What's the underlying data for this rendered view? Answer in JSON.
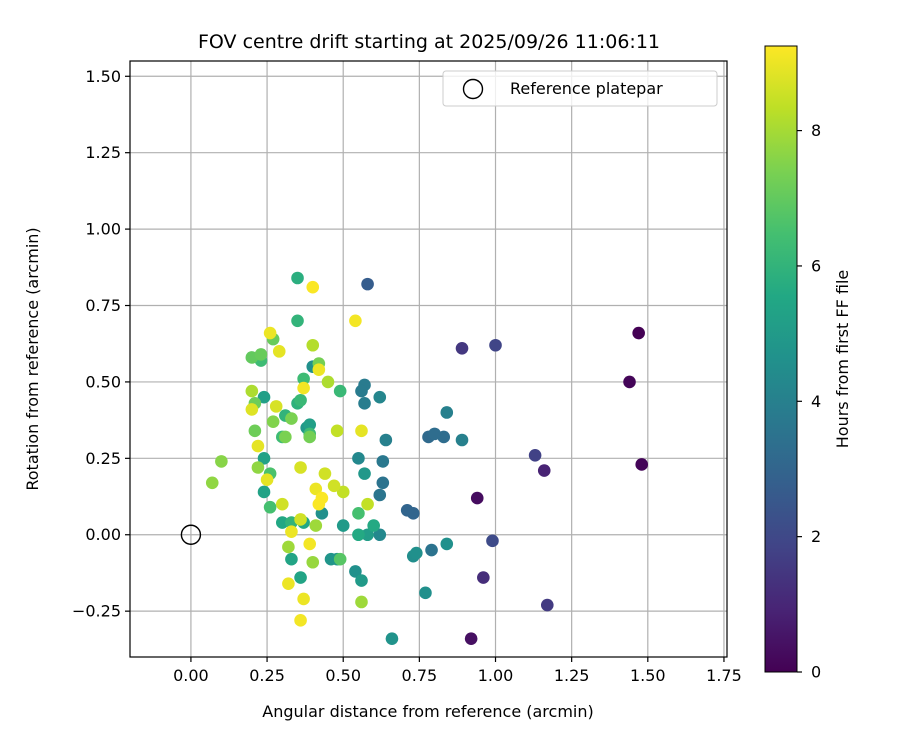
{
  "chart_data": {
    "type": "scatter",
    "title": "FOV centre drift starting at 2025/09/26 11:06:11",
    "xlabel": "Angular distance from reference (arcmin)",
    "ylabel": "Rotation from reference (arcmin)",
    "xlim": [
      -0.2,
      1.76
    ],
    "ylim": [
      -0.4,
      1.55
    ],
    "xticks": [
      0.0,
      0.25,
      0.5,
      0.75,
      1.0,
      1.25,
      1.5,
      1.75
    ],
    "xtick_labels": [
      "0.00",
      "0.25",
      "0.50",
      "0.75",
      "1.00",
      "1.25",
      "1.50",
      "1.75"
    ],
    "yticks": [
      -0.25,
      0.0,
      0.25,
      0.5,
      0.75,
      1.0,
      1.25,
      1.5
    ],
    "ytick_labels": [
      "−0.25",
      "0.00",
      "0.25",
      "0.50",
      "0.75",
      "1.00",
      "1.25",
      "1.50"
    ],
    "grid": true,
    "legend": {
      "position": "top-right",
      "label": "Reference platepar"
    },
    "reference": {
      "x": 0.0,
      "y": 0.0
    },
    "colorbar": {
      "label": "Hours from first FF file",
      "min": 0,
      "max": 9.25,
      "ticks": [
        0,
        2,
        4,
        6,
        8
      ],
      "tick_labels": [
        "0",
        "2",
        "4",
        "6",
        "8"
      ]
    },
    "points": [
      {
        "x": 1.47,
        "y": 0.66,
        "c": 0.0
      },
      {
        "x": 1.44,
        "y": 0.5,
        "c": 0.1
      },
      {
        "x": 1.48,
        "y": 0.23,
        "c": 0.1
      },
      {
        "x": 0.94,
        "y": 0.12,
        "c": 0.3
      },
      {
        "x": 0.92,
        "y": -0.34,
        "c": 0.4
      },
      {
        "x": 1.16,
        "y": 0.21,
        "c": 0.9
      },
      {
        "x": 0.96,
        "y": -0.14,
        "c": 1.2
      },
      {
        "x": 0.89,
        "y": 0.61,
        "c": 1.5
      },
      {
        "x": 1.17,
        "y": -0.23,
        "c": 1.6
      },
      {
        "x": 1.13,
        "y": 0.26,
        "c": 1.8
      },
      {
        "x": 1.0,
        "y": 0.62,
        "c": 1.9
      },
      {
        "x": 0.99,
        "y": -0.02,
        "c": 2.1
      },
      {
        "x": 0.58,
        "y": 0.82,
        "c": 2.7
      },
      {
        "x": 0.73,
        "y": 0.07,
        "c": 3.0
      },
      {
        "x": 0.71,
        "y": 0.08,
        "c": 3.0
      },
      {
        "x": 0.78,
        "y": 0.32,
        "c": 3.2
      },
      {
        "x": 0.83,
        "y": 0.32,
        "c": 3.3
      },
      {
        "x": 0.8,
        "y": 0.33,
        "c": 3.3
      },
      {
        "x": 0.79,
        "y": -0.05,
        "c": 3.5
      },
      {
        "x": 0.63,
        "y": 0.17,
        "c": 3.5
      },
      {
        "x": 0.62,
        "y": 0.13,
        "c": 3.6
      },
      {
        "x": 0.63,
        "y": 0.24,
        "c": 3.7
      },
      {
        "x": 0.57,
        "y": 0.49,
        "c": 3.8
      },
      {
        "x": 0.56,
        "y": 0.47,
        "c": 3.8
      },
      {
        "x": 0.57,
        "y": 0.43,
        "c": 3.9
      },
      {
        "x": 0.64,
        "y": 0.31,
        "c": 4.0
      },
      {
        "x": 0.89,
        "y": 0.31,
        "c": 4.0
      },
      {
        "x": 0.84,
        "y": 0.4,
        "c": 4.0
      },
      {
        "x": 0.62,
        "y": 0.45,
        "c": 4.2
      },
      {
        "x": 0.62,
        "y": 0.0,
        "c": 4.3
      },
      {
        "x": 0.55,
        "y": 0.25,
        "c": 4.3
      },
      {
        "x": 0.73,
        "y": -0.07,
        "c": 4.5
      },
      {
        "x": 0.84,
        "y": -0.03,
        "c": 4.6
      },
      {
        "x": 0.74,
        "y": -0.06,
        "c": 4.6
      },
      {
        "x": 0.77,
        "y": -0.19,
        "c": 4.6
      },
      {
        "x": 0.66,
        "y": -0.34,
        "c": 4.7
      },
      {
        "x": 0.4,
        "y": 0.55,
        "c": 4.6
      },
      {
        "x": 0.43,
        "y": 0.07,
        "c": 4.6
      },
      {
        "x": 0.54,
        "y": -0.12,
        "c": 4.6
      },
      {
        "x": 0.48,
        "y": -0.08,
        "c": 4.8
      },
      {
        "x": 0.46,
        "y": -0.08,
        "c": 4.8
      },
      {
        "x": 0.57,
        "y": 0.2,
        "c": 4.9
      },
      {
        "x": 0.38,
        "y": 0.35,
        "c": 4.9
      },
      {
        "x": 0.5,
        "y": 0.03,
        "c": 5.0
      },
      {
        "x": 0.56,
        "y": -0.15,
        "c": 5.0
      },
      {
        "x": 0.58,
        "y": 0.0,
        "c": 5.1
      },
      {
        "x": 0.39,
        "y": 0.36,
        "c": 5.2
      },
      {
        "x": 0.24,
        "y": 0.45,
        "c": 5.2
      },
      {
        "x": 0.24,
        "y": 0.25,
        "c": 5.3
      },
      {
        "x": 0.24,
        "y": 0.14,
        "c": 5.3
      },
      {
        "x": 0.33,
        "y": -0.08,
        "c": 5.4
      },
      {
        "x": 0.36,
        "y": -0.14,
        "c": 5.4
      },
      {
        "x": 0.3,
        "y": 0.04,
        "c": 5.5
      },
      {
        "x": 0.37,
        "y": 0.04,
        "c": 5.5
      },
      {
        "x": 0.55,
        "y": 0.0,
        "c": 5.6
      },
      {
        "x": 0.6,
        "y": 0.03,
        "c": 5.6
      },
      {
        "x": 0.35,
        "y": 0.84,
        "c": 5.8
      },
      {
        "x": 0.35,
        "y": 0.7,
        "c": 6.0
      },
      {
        "x": 0.35,
        "y": 0.43,
        "c": 5.9
      },
      {
        "x": 0.31,
        "y": 0.39,
        "c": 6.0
      },
      {
        "x": 0.33,
        "y": 0.04,
        "c": 6.0
      },
      {
        "x": 0.23,
        "y": 0.57,
        "c": 6.3
      },
      {
        "x": 0.36,
        "y": 0.44,
        "c": 6.2
      },
      {
        "x": 0.49,
        "y": 0.47,
        "c": 6.2
      },
      {
        "x": 0.37,
        "y": 0.51,
        "c": 6.3
      },
      {
        "x": 0.39,
        "y": 0.33,
        "c": 6.3
      },
      {
        "x": 0.3,
        "y": 0.32,
        "c": 6.3
      },
      {
        "x": 0.26,
        "y": 0.09,
        "c": 6.5
      },
      {
        "x": 0.26,
        "y": 0.2,
        "c": 6.6
      },
      {
        "x": 0.49,
        "y": -0.08,
        "c": 6.8
      },
      {
        "x": 0.55,
        "y": 0.07,
        "c": 6.5
      },
      {
        "x": 0.2,
        "y": 0.58,
        "c": 7.0
      },
      {
        "x": 0.23,
        "y": 0.59,
        "c": 7.1
      },
      {
        "x": 0.27,
        "y": 0.64,
        "c": 7.1
      },
      {
        "x": 0.21,
        "y": 0.43,
        "c": 7.2
      },
      {
        "x": 0.21,
        "y": 0.34,
        "c": 7.2
      },
      {
        "x": 0.39,
        "y": 0.32,
        "c": 7.3
      },
      {
        "x": 0.42,
        "y": 0.56,
        "c": 7.3
      },
      {
        "x": 0.31,
        "y": 0.32,
        "c": 7.4
      },
      {
        "x": 0.33,
        "y": 0.38,
        "c": 7.4
      },
      {
        "x": 0.27,
        "y": 0.37,
        "c": 7.5
      },
      {
        "x": 0.1,
        "y": 0.24,
        "c": 7.6
      },
      {
        "x": 0.07,
        "y": 0.17,
        "c": 7.7
      },
      {
        "x": 0.22,
        "y": 0.22,
        "c": 7.7
      },
      {
        "x": 0.4,
        "y": -0.09,
        "c": 7.8
      },
      {
        "x": 0.32,
        "y": -0.04,
        "c": 7.9
      },
      {
        "x": 0.41,
        "y": 0.03,
        "c": 7.9
      },
      {
        "x": 0.56,
        "y": -0.22,
        "c": 7.9
      },
      {
        "x": 0.2,
        "y": 0.47,
        "c": 8.1
      },
      {
        "x": 0.45,
        "y": 0.5,
        "c": 8.1
      },
      {
        "x": 0.4,
        "y": 0.62,
        "c": 8.2
      },
      {
        "x": 0.48,
        "y": 0.34,
        "c": 8.4
      },
      {
        "x": 0.5,
        "y": 0.14,
        "c": 8.4
      },
      {
        "x": 0.58,
        "y": 0.1,
        "c": 8.4
      },
      {
        "x": 0.3,
        "y": 0.1,
        "c": 8.6
      },
      {
        "x": 0.36,
        "y": 0.05,
        "c": 8.6
      },
      {
        "x": 0.44,
        "y": 0.2,
        "c": 8.6
      },
      {
        "x": 0.47,
        "y": 0.16,
        "c": 8.6
      },
      {
        "x": 0.28,
        "y": 0.42,
        "c": 8.7
      },
      {
        "x": 0.36,
        "y": 0.22,
        "c": 8.7
      },
      {
        "x": 0.2,
        "y": 0.41,
        "c": 8.8
      },
      {
        "x": 0.25,
        "y": 0.18,
        "c": 8.9
      },
      {
        "x": 0.56,
        "y": 0.34,
        "c": 8.9
      },
      {
        "x": 0.29,
        "y": 0.6,
        "c": 8.9
      },
      {
        "x": 0.22,
        "y": 0.29,
        "c": 8.9
      },
      {
        "x": 0.41,
        "y": 0.15,
        "c": 9.0
      },
      {
        "x": 0.42,
        "y": 0.54,
        "c": 9.0
      },
      {
        "x": 0.26,
        "y": 0.66,
        "c": 9.0
      },
      {
        "x": 0.33,
        "y": 0.01,
        "c": 9.0
      },
      {
        "x": 0.32,
        "y": -0.16,
        "c": 9.0
      },
      {
        "x": 0.37,
        "y": -0.21,
        "c": 9.0
      },
      {
        "x": 0.36,
        "y": -0.28,
        "c": 9.1
      },
      {
        "x": 0.39,
        "y": -0.03,
        "c": 9.1
      },
      {
        "x": 0.37,
        "y": 0.48,
        "c": 9.1
      },
      {
        "x": 0.54,
        "y": 0.7,
        "c": 9.1
      },
      {
        "x": 0.4,
        "y": 0.81,
        "c": 9.2
      },
      {
        "x": 0.42,
        "y": 0.1,
        "c": 9.2
      },
      {
        "x": 0.43,
        "y": 0.12,
        "c": 9.2
      }
    ]
  }
}
